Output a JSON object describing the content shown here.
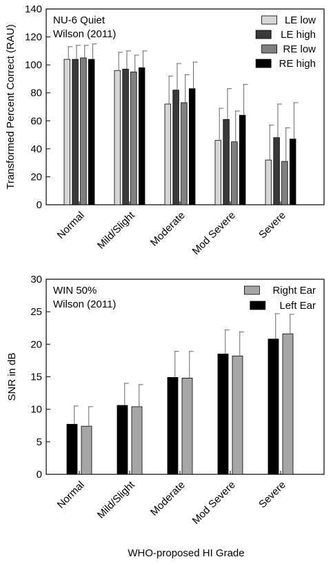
{
  "colors": {
    "le_low": "#d6d6d6",
    "le_high": "#3a3a3a",
    "re_low": "#808080",
    "re_high": "#000000",
    "right_ear": "#a6a6a6",
    "left_ear": "#000000"
  },
  "xlabel_shared": "WHO-proposed HI Grade",
  "chart_data": [
    {
      "type": "bar",
      "annotation": [
        "NU-6 Quiet",
        "Wilson (2011)"
      ],
      "ylabel": "Transformed Percent Correct (RAU)",
      "ylim": [
        0,
        140
      ],
      "yticks": [
        0,
        20,
        40,
        60,
        80,
        100,
        120,
        140
      ],
      "legend_placement": "top-right",
      "categories": [
        "Normal",
        "Mild/Slight",
        "Moderate",
        "Mod Severe",
        "Severe"
      ],
      "series": [
        {
          "name": "LE low",
          "color_key": "le_low",
          "values": [
            104,
            96,
            72,
            46,
            32
          ],
          "error": [
            9,
            13,
            20,
            23,
            25
          ]
        },
        {
          "name": "LE high",
          "color_key": "le_high",
          "values": [
            104,
            97,
            82,
            61,
            48
          ],
          "error": [
            10,
            13,
            19,
            22,
            24
          ]
        },
        {
          "name": "RE low",
          "color_key": "re_low",
          "values": [
            105,
            95,
            73,
            45,
            31
          ],
          "error": [
            9,
            12,
            20,
            22,
            24
          ]
        },
        {
          "name": "RE high",
          "color_key": "re_high",
          "values": [
            104,
            98,
            83,
            64,
            47
          ],
          "error": [
            11,
            12,
            19,
            22,
            26
          ]
        }
      ]
    },
    {
      "type": "bar",
      "annotation": [
        "WIN 50%",
        "Wilson (2011)"
      ],
      "ylabel": "SNR in dB",
      "ylim": [
        0,
        30
      ],
      "yticks": [
        0,
        5,
        10,
        15,
        20,
        25,
        30
      ],
      "legend_placement": "top-right",
      "categories": [
        "Normal",
        "Mild/Slight",
        "Moderate",
        "Mod Severe",
        "Severe"
      ],
      "legend_order": [
        "Right Ear",
        "Left Ear"
      ],
      "series": [
        {
          "name": "Left Ear",
          "color_key": "left_ear",
          "values": [
            7.7,
            10.6,
            14.9,
            18.5,
            20.8
          ],
          "error": [
            2.8,
            3.4,
            4.0,
            3.7,
            3.9
          ]
        },
        {
          "name": "Right Ear",
          "color_key": "right_ear",
          "values": [
            7.4,
            10.4,
            14.8,
            18.2,
            21.6
          ],
          "error": [
            3.0,
            3.4,
            4.1,
            3.7,
            3.0
          ]
        }
      ]
    }
  ]
}
